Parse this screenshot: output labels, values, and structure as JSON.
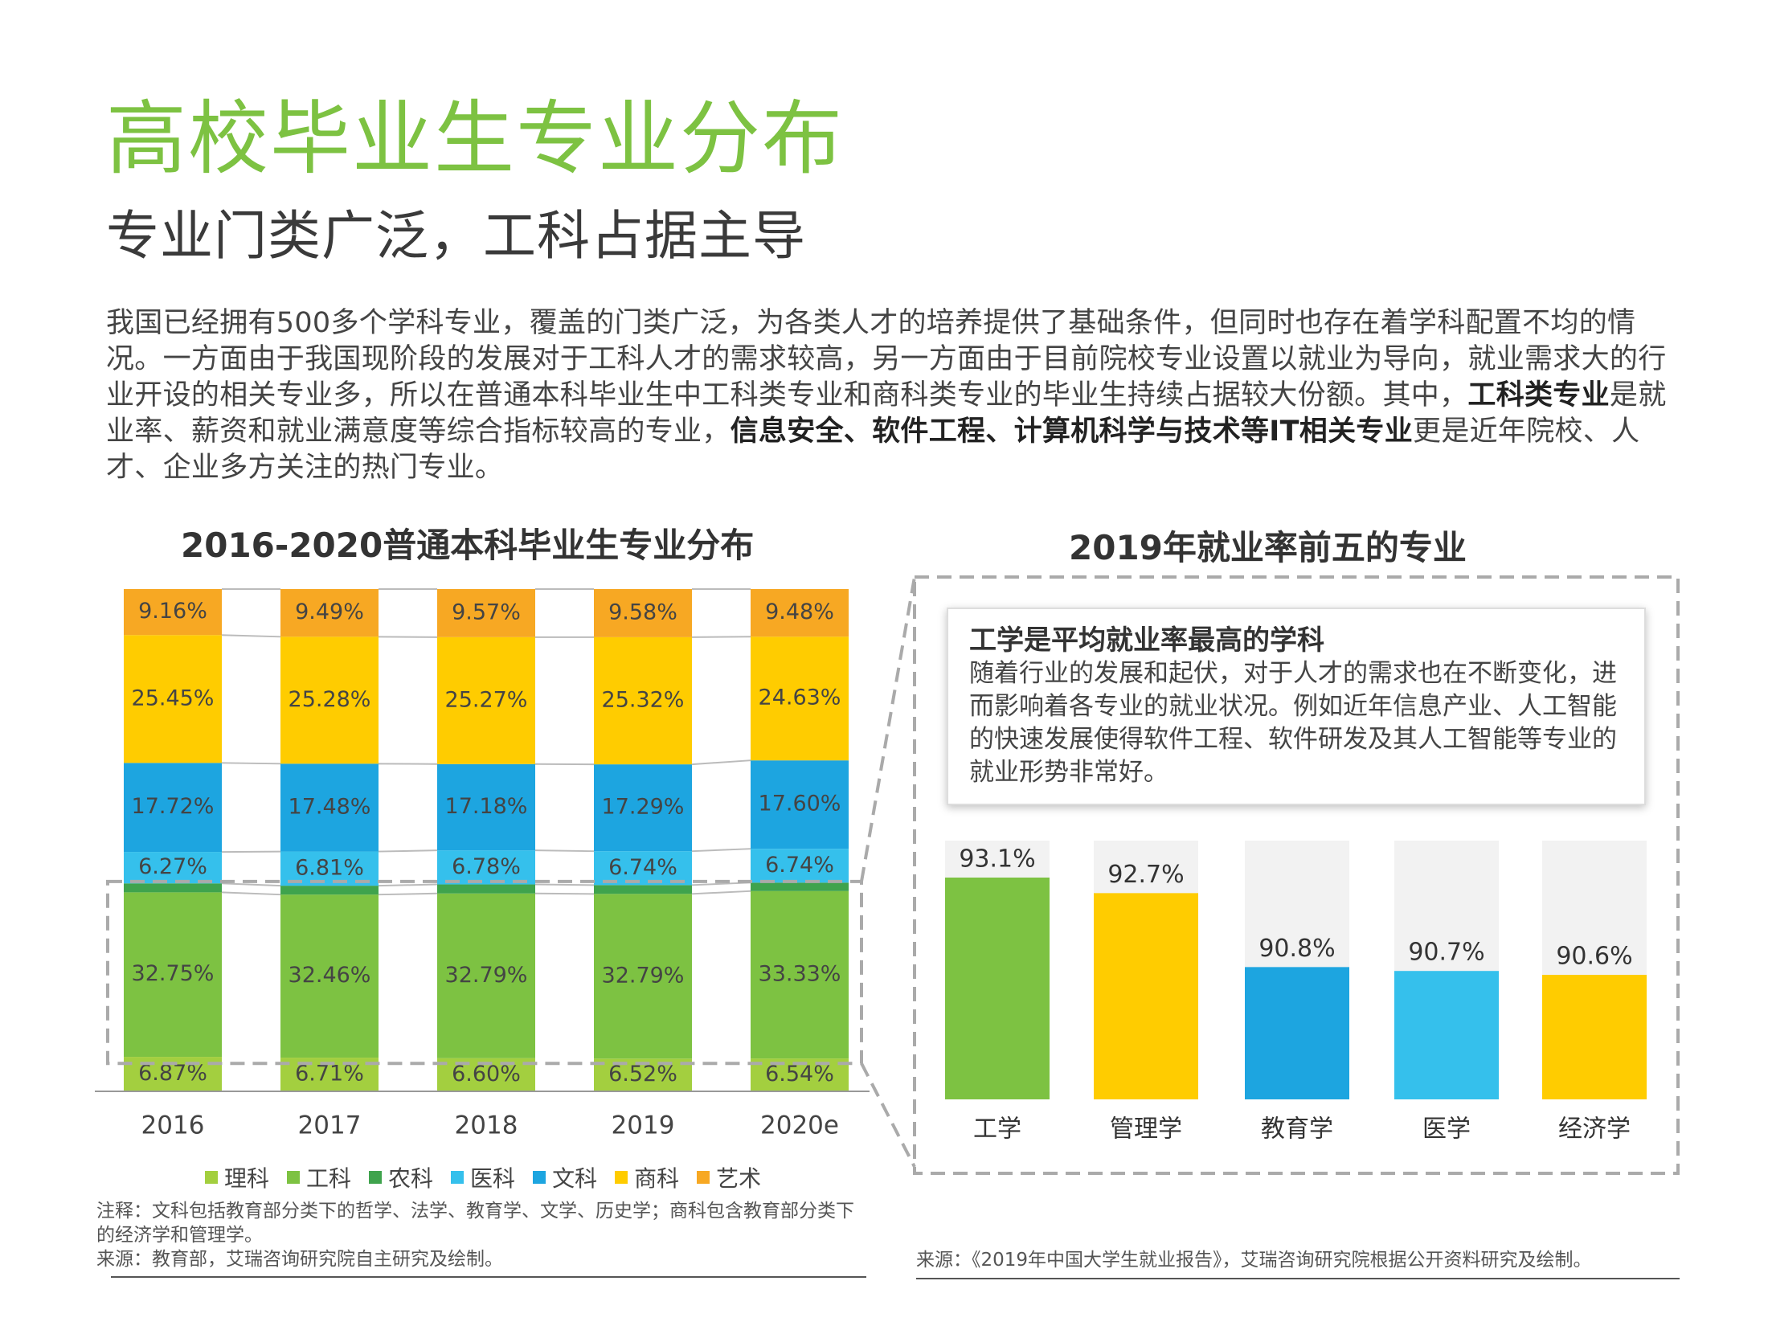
{
  "header": {
    "title": "高校毕业生专业分布",
    "subtitle": "专业门类广泛，工科占据主导"
  },
  "intro": {
    "p1": "我国已经拥有500多个学科专业，覆盖的门类广泛，为各类人才的培养提供了基础条件，但同时也存在着学科配置不均的情况。一方面由于我国现阶段的发展对于工科人才的需求较高，另一方面由于目前院校专业设置以就业为导向，就业需求大的行业开设的相关专业多，所以在普通本科毕业生中工科类专业和商科类专业的毕业生持续占据较大份额。其中，",
    "b1": "工科类专业",
    "p2": "是就业率、薪资和就业满意度等综合指标较高的专业，",
    "b2": "信息安全、软件工程、计算机科学与技术等IT相关专业",
    "p3": "更是近年院校、人才、企业多方关注的热门专业。"
  },
  "colors": {
    "理科": "#a3cf3f",
    "工科": "#7dc242",
    "农科": "#3fa34d",
    "医科": "#35c0ec",
    "文科": "#1da5e0",
    "商科": "#ffcc00",
    "艺术": "#f7a823",
    "gray_bg": "#f2f2f2"
  },
  "chart_data": [
    {
      "type": "bar",
      "stacked": true,
      "title": "2016-2020普通本科毕业生专业分布",
      "categories": [
        "2016",
        "2017",
        "2018",
        "2019",
        "2020e"
      ],
      "series": [
        {
          "name": "理科",
          "color": "#a3cf3f",
          "values": [
            6.87,
            6.71,
            6.6,
            6.52,
            6.54
          ],
          "labels": [
            "6.87%",
            "6.71%",
            "6.60%",
            "6.52%",
            "6.54%"
          ]
        },
        {
          "name": "工科",
          "color": "#7dc242",
          "values": [
            32.75,
            32.46,
            32.79,
            32.79,
            33.33
          ],
          "labels": [
            "32.75%",
            "32.46%",
            "32.79%",
            "32.79%",
            "33.33%"
          ]
        },
        {
          "name": "农科",
          "color": "#3fa34d",
          "values": [
            1.78,
            1.77,
            1.8,
            1.76,
            1.68
          ],
          "labels": [
            "",
            "",
            "",
            "",
            ""
          ]
        },
        {
          "name": "医科",
          "color": "#35c0ec",
          "values": [
            6.27,
            6.81,
            6.78,
            6.74,
            6.74
          ],
          "labels": [
            "6.27%",
            "6.81%",
            "6.78%",
            "6.74%",
            "6.74%"
          ]
        },
        {
          "name": "文科",
          "color": "#1da5e0",
          "values": [
            17.72,
            17.48,
            17.18,
            17.29,
            17.6
          ],
          "labels": [
            "17.72%",
            "17.48%",
            "17.18%",
            "17.29%",
            "17.60%"
          ]
        },
        {
          "name": "商科",
          "color": "#ffcc00",
          "values": [
            25.45,
            25.28,
            25.27,
            25.32,
            24.63
          ],
          "labels": [
            "25.45%",
            "25.28%",
            "25.27%",
            "25.32%",
            "24.63%"
          ]
        },
        {
          "name": "艺术",
          "color": "#f7a823",
          "values": [
            9.16,
            9.49,
            9.57,
            9.58,
            9.48
          ],
          "labels": [
            "9.16%",
            "9.49%",
            "9.57%",
            "9.58%",
            "9.48%"
          ]
        }
      ],
      "ylim": [
        0,
        100
      ],
      "legend": "bottom"
    },
    {
      "type": "bar",
      "title": "2019年就业率前五的专业",
      "categories": [
        "工学",
        "管理学",
        "教育学",
        "医学",
        "经济学"
      ],
      "values": [
        93.1,
        92.7,
        90.8,
        90.7,
        90.6
      ],
      "labels": [
        "93.1%",
        "92.7%",
        "90.8%",
        "90.7%",
        "90.6%"
      ],
      "colors": [
        "#7dc242",
        "#ffcc00",
        "#1da5e0",
        "#35c0ec",
        "#ffcc00"
      ]
    }
  ],
  "callout": {
    "title": "工学是平均就业率最高的学科",
    "body": "随着行业的发展和起伏，对于人才的需求也在不断变化，进而影响着各专业的就业状况。例如近年信息产业、人工智能的快速发展使得软件工程、软件研发及其人工智能等专业的就业形势非常好。"
  },
  "legend_items": [
    "理科",
    "工科",
    "农科",
    "医科",
    "文科",
    "商科",
    "艺术"
  ],
  "notes": {
    "note": "注释：文科包括教育部分类下的哲学、法学、教育学、文学、历史学；商科包含教育部分类下的经济学和管理学。",
    "source_left": "来源：教育部，艾瑞咨询研究院自主研究及绘制。",
    "source_right": "来源：《2019年中国大学生就业报告》，艾瑞咨询研究院根据公开资料研究及绘制。"
  }
}
